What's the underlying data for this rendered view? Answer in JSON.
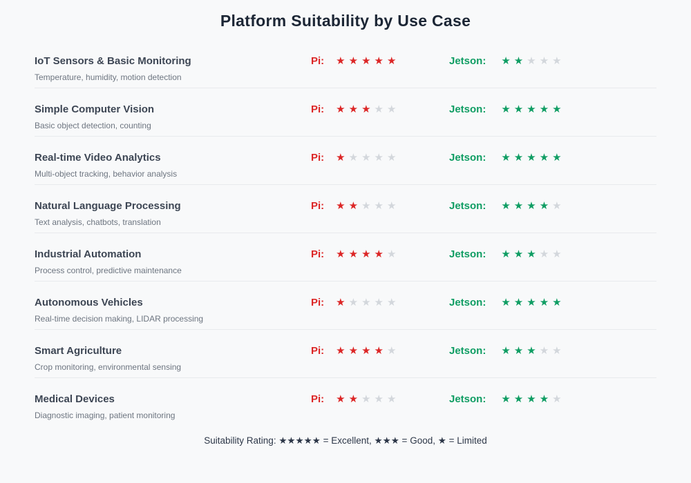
{
  "title": "Platform Suitability by Use Case",
  "labels": {
    "pi": "Pi:",
    "jetson": "Jetson:"
  },
  "star_glyph": "★",
  "max_stars": 5,
  "rows": [
    {
      "title": "IoT Sensors & Basic Monitoring",
      "subtitle": "Temperature, humidity, motion detection",
      "pi": 5,
      "jetson": 2
    },
    {
      "title": "Simple Computer Vision",
      "subtitle": "Basic object detection, counting",
      "pi": 3,
      "jetson": 5
    },
    {
      "title": "Real-time Video Analytics",
      "subtitle": "Multi-object tracking, behavior analysis",
      "pi": 1,
      "jetson": 5
    },
    {
      "title": "Natural Language Processing",
      "subtitle": "Text analysis, chatbots, translation",
      "pi": 2,
      "jetson": 4
    },
    {
      "title": "Industrial Automation",
      "subtitle": "Process control, predictive maintenance",
      "pi": 4,
      "jetson": 3
    },
    {
      "title": "Autonomous Vehicles",
      "subtitle": "Real-time decision making, LIDAR processing",
      "pi": 1,
      "jetson": 5
    },
    {
      "title": "Smart Agriculture",
      "subtitle": "Crop monitoring, environmental sensing",
      "pi": 4,
      "jetson": 3
    },
    {
      "title": "Medical Devices",
      "subtitle": "Diagnostic imaging, patient monitoring",
      "pi": 2,
      "jetson": 4
    }
  ],
  "footer": "Suitability Rating: ★★★★★ = Excellent, ★★★ = Good, ★ = Limited",
  "colors": {
    "background": "#f8f9fa",
    "title": "#1c2635",
    "row_title": "#3d4654",
    "subtitle": "#6d7580",
    "pi_accent": "#dc2626",
    "jetson_accent": "#0f9d63",
    "star_empty": "#d3d7dc",
    "divider": "#e8eaed",
    "footer_text": "#2d3748"
  },
  "chart_data": {
    "type": "table",
    "title": "Platform Suitability by Use Case",
    "categories": [
      "IoT Sensors & Basic Monitoring",
      "Simple Computer Vision",
      "Real-time Video Analytics",
      "Natural Language Processing",
      "Industrial Automation",
      "Autonomous Vehicles",
      "Smart Agriculture",
      "Medical Devices"
    ],
    "series": [
      {
        "name": "Pi",
        "values": [
          5,
          3,
          1,
          2,
          4,
          1,
          4,
          2
        ]
      },
      {
        "name": "Jetson",
        "values": [
          2,
          5,
          5,
          4,
          3,
          5,
          3,
          4
        ]
      }
    ],
    "scale": {
      "min": 1,
      "max": 5,
      "unit": "stars"
    },
    "legend": "★★★★★ = Excellent, ★★★ = Good, ★ = Limited",
    "legend_position": "bottom"
  }
}
